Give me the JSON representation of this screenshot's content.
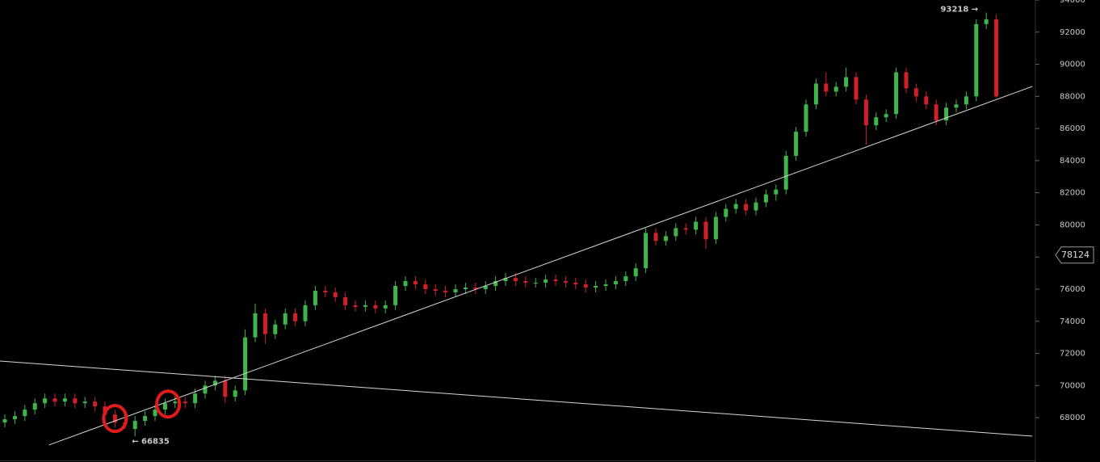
{
  "chart_data": {
    "type": "candlestick",
    "up_color": "#3fb64b",
    "down_color": "#d1202a",
    "line_color": "#d8d8d8",
    "highlight_color": "#e01b1b",
    "ylim": [
      65240,
      94000
    ],
    "yticks": [
      68000,
      70000,
      72000,
      74000,
      76000,
      78000,
      80000,
      82000,
      84000,
      86000,
      88000,
      90000,
      92000,
      94000
    ],
    "open": [
      67700,
      67900,
      68100,
      68500,
      68900,
      69200,
      69000,
      69200,
      68900,
      69000,
      68700,
      68200,
      67700,
      67300,
      67800,
      68100,
      68500,
      68900,
      69000,
      68900,
      69500,
      70000,
      70300,
      69300,
      69700,
      73000,
      74500,
      73200,
      73800,
      74500,
      74000,
      75000,
      75900,
      75800,
      75500,
      75000,
      74900,
      75000,
      74800,
      75000,
      76200,
      76500,
      76300,
      76000,
      75900,
      75800,
      76000,
      76100,
      76000,
      76200,
      76500,
      76700,
      76500,
      76400,
      76400,
      76600,
      76500,
      76400,
      76300,
      76100,
      76200,
      76300,
      76500,
      76800,
      77300,
      79500,
      79000,
      79300,
      79800,
      79700,
      80200,
      79100,
      80500,
      81000,
      81300,
      80900,
      81400,
      81900,
      82200,
      84300,
      85800,
      87500,
      88800,
      88300,
      88600,
      89200,
      87800,
      86200,
      86700,
      86900,
      89500,
      88500,
      88000,
      87500,
      86500,
      87300,
      87500,
      88000,
      92500,
      92800
    ],
    "high": [
      68200,
      68400,
      68800,
      69200,
      69500,
      69500,
      69500,
      69500,
      69300,
      69300,
      69000,
      68500,
      68000,
      68100,
      68400,
      68800,
      69200,
      69300,
      69300,
      69800,
      70300,
      70600,
      70600,
      70000,
      73500,
      75100,
      74800,
      74100,
      74800,
      74800,
      75300,
      76200,
      76200,
      76100,
      75800,
      75300,
      75300,
      75300,
      75300,
      76500,
      76800,
      76800,
      76600,
      76300,
      76200,
      76300,
      76400,
      76400,
      76500,
      76800,
      77000,
      77000,
      76800,
      76700,
      76900,
      76900,
      76800,
      76700,
      76600,
      76500,
      76600,
      76800,
      77100,
      77600,
      79800,
      79800,
      79600,
      80100,
      80100,
      80500,
      80500,
      80800,
      81300,
      81600,
      81600,
      81700,
      82200,
      82500,
      84600,
      86100,
      87800,
      89100,
      89500,
      88900,
      89800,
      89500,
      88100,
      87000,
      87200,
      89800,
      89800,
      88800,
      88300,
      87800,
      87600,
      87800,
      88300,
      92800,
      93218,
      93100
    ],
    "low": [
      67400,
      67600,
      67800,
      68200,
      68600,
      68700,
      68700,
      68600,
      68600,
      68400,
      67900,
      67400,
      67300,
      66835,
      67500,
      67800,
      68200,
      68600,
      68600,
      68600,
      69200,
      69700,
      68900,
      69000,
      69400,
      72700,
      72600,
      72900,
      73500,
      73700,
      73700,
      74700,
      75500,
      75200,
      74700,
      74600,
      74600,
      74500,
      74500,
      74700,
      75900,
      76000,
      75700,
      75600,
      75500,
      75500,
      75700,
      75700,
      75700,
      75900,
      76200,
      76200,
      76100,
      76100,
      76100,
      76200,
      76100,
      76000,
      75800,
      75800,
      75900,
      76000,
      76200,
      76500,
      77000,
      78700,
      78700,
      79000,
      79400,
      79400,
      78500,
      78800,
      80200,
      80700,
      80600,
      80600,
      81100,
      81500,
      81900,
      84000,
      85500,
      87200,
      88000,
      88000,
      88300,
      87500,
      85000,
      85900,
      86400,
      86600,
      88200,
      87700,
      87200,
      86200,
      86200,
      87000,
      87200,
      87700,
      92200,
      87900
    ],
    "close": [
      67900,
      68100,
      68500,
      68900,
      69200,
      69000,
      69200,
      68900,
      69000,
      68700,
      68200,
      67700,
      67600,
      67800,
      68100,
      68500,
      68900,
      69000,
      68900,
      69500,
      70000,
      70300,
      69300,
      69700,
      73000,
      74500,
      73200,
      73800,
      74500,
      74000,
      75000,
      75900,
      75800,
      75500,
      75000,
      74900,
      75000,
      74800,
      75000,
      76200,
      76500,
      76300,
      76000,
      75900,
      75800,
      76000,
      76100,
      76000,
      76200,
      76500,
      76700,
      76500,
      76400,
      76400,
      76600,
      76500,
      76400,
      76300,
      76100,
      76200,
      76300,
      76500,
      76800,
      77300,
      79500,
      79000,
      79300,
      79800,
      79700,
      80200,
      79100,
      80500,
      81000,
      81300,
      80900,
      81400,
      81900,
      82200,
      84300,
      85800,
      87500,
      88800,
      88300,
      88600,
      89200,
      87800,
      86200,
      86700,
      86900,
      89500,
      88500,
      88000,
      87500,
      86500,
      87300,
      87500,
      88000,
      92500,
      92800,
      88000
    ],
    "trendlines": [
      {
        "x": [
          4.4,
          102.6
        ],
        "y": [
          66300,
          88620
        ]
      },
      {
        "x": [
          -0.5,
          102.6
        ],
        "y": [
          71525,
          66850
        ]
      }
    ],
    "highlights": [
      {
        "x": 11,
        "y": 67950
      },
      {
        "x": 16.3,
        "y": 68850
      }
    ],
    "annotations": [
      {
        "label": "93218 →",
        "value": 93218
      },
      {
        "label": "← 66835",
        "value": 66835
      }
    ],
    "price_label": 78124
  }
}
